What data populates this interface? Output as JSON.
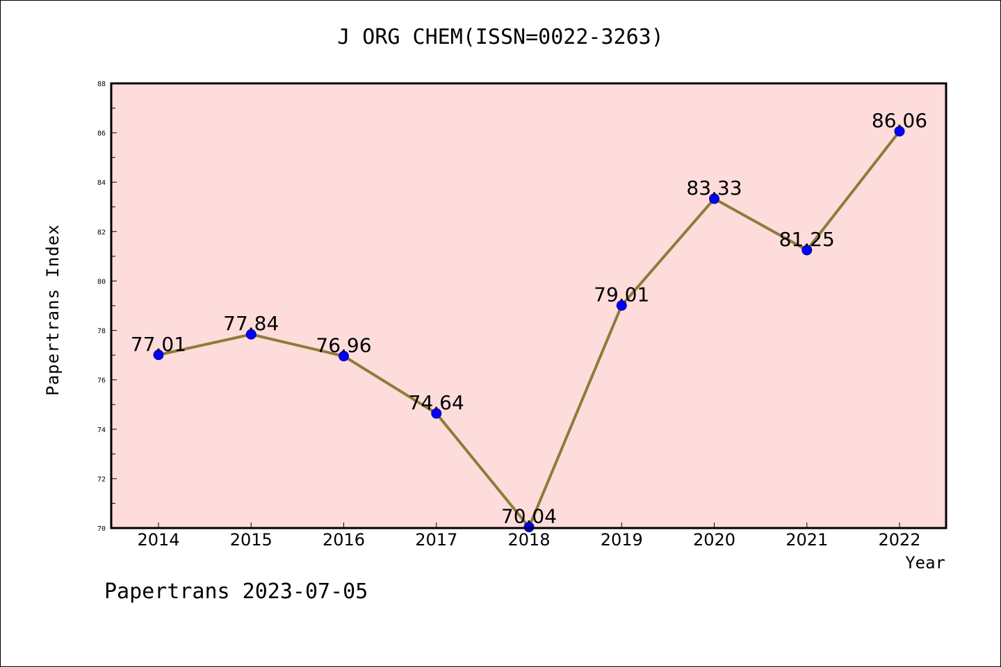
{
  "chart_data": {
    "type": "line",
    "title": "J ORG CHEM(ISSN=0022-3263)",
    "xlabel": "Year",
    "ylabel": "Papertrans Index",
    "footer": "Papertrans 2023-07-05",
    "categories": [
      "2014",
      "2015",
      "2016",
      "2017",
      "2018",
      "2019",
      "2020",
      "2021",
      "2022"
    ],
    "series": [
      {
        "values": [
          77.01,
          77.84,
          76.96,
          74.64,
          70.04,
          79.01,
          83.33,
          81.25,
          86.06
        ],
        "labels": [
          "77.01",
          "77.84",
          "76.96",
          "74.64",
          "70.04",
          "79.01",
          "83.33",
          "81.25",
          "86.06"
        ]
      }
    ],
    "ylim": [
      70,
      88
    ],
    "yticks": [
      "70",
      "72",
      "74",
      "76",
      "78",
      "80",
      "82",
      "84",
      "86",
      "88"
    ],
    "grid": false,
    "legend": "none",
    "colors": {
      "plot_background": "#ffdcdc",
      "line": "#8b7d3a",
      "marker": "#0000ff"
    }
  }
}
